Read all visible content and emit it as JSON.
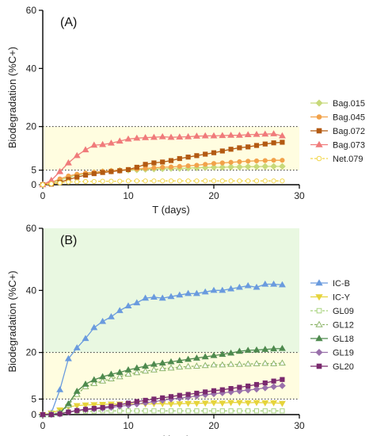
{
  "colors": {
    "band_low": "#fffde0",
    "band_high": "#e9f8e1",
    "axis": "#000000",
    "threshold_line": "#333333"
  },
  "chart_data": [
    {
      "type": "line",
      "panel_label": "(A)",
      "xlabel": "T (days)",
      "ylabel": "Biodegradation (%C+)",
      "xlim": [
        0,
        30
      ],
      "ylim": [
        0,
        60
      ],
      "xticks": [
        0,
        10,
        20,
        30
      ],
      "yticks": [
        0,
        5,
        20,
        40,
        60
      ],
      "threshold_lines": [
        5,
        20
      ],
      "bands": [
        {
          "from": 5,
          "to": 20,
          "color": "band_low"
        }
      ],
      "legend_position": "right",
      "series": [
        {
          "name": "Bag.015",
          "color": "#c7d97a",
          "marker": "diamond",
          "filled": true,
          "x": [
            0,
            1,
            2,
            3,
            4,
            5,
            6,
            7,
            8,
            9,
            10,
            11,
            12,
            13,
            14,
            15,
            16,
            17,
            18,
            19,
            20,
            21,
            22,
            23,
            24,
            25,
            26,
            27,
            28
          ],
          "y": [
            0,
            0.5,
            1.5,
            2.5,
            3.3,
            3.8,
            4.2,
            4.5,
            4.7,
            4.9,
            5.0,
            5.1,
            5.3,
            5.4,
            5.5,
            5.6,
            5.6,
            5.7,
            5.8,
            5.9,
            6.0,
            6.0,
            6.1,
            6.1,
            6.2,
            6.2,
            6.3,
            6.3,
            6.3
          ]
        },
        {
          "name": "Bag.045",
          "color": "#f2a24a",
          "marker": "circle",
          "filled": true,
          "x": [
            0,
            1,
            2,
            3,
            4,
            5,
            6,
            7,
            8,
            9,
            10,
            11,
            12,
            13,
            14,
            15,
            16,
            17,
            18,
            19,
            20,
            21,
            22,
            23,
            24,
            25,
            26,
            27,
            28
          ],
          "y": [
            0,
            0.8,
            2.0,
            3.0,
            3.6,
            4.0,
            4.3,
            4.6,
            4.8,
            5.0,
            5.2,
            5.4,
            5.6,
            5.8,
            6.0,
            6.1,
            6.3,
            6.5,
            6.7,
            7.0,
            7.3,
            7.5,
            7.7,
            7.9,
            8.1,
            8.2,
            8.3,
            8.4,
            8.4
          ]
        },
        {
          "name": "Bag.072",
          "color": "#b35a12",
          "marker": "square",
          "filled": true,
          "x": [
            0,
            1,
            2,
            3,
            4,
            5,
            6,
            7,
            8,
            9,
            10,
            11,
            12,
            13,
            14,
            15,
            16,
            17,
            18,
            19,
            20,
            21,
            22,
            23,
            24,
            25,
            26,
            27,
            28
          ],
          "y": [
            0,
            0.2,
            0.8,
            1.8,
            2.6,
            3.3,
            3.8,
            4.2,
            4.5,
            4.8,
            5.2,
            6.0,
            7.0,
            7.5,
            7.8,
            8.3,
            9.0,
            9.5,
            10.0,
            10.5,
            11.0,
            11.6,
            12.2,
            12.7,
            13.0,
            13.5,
            14.0,
            14.4,
            14.6
          ]
        },
        {
          "name": "Bag.073",
          "color": "#f07b7b",
          "marker": "triangle",
          "filled": true,
          "x": [
            0,
            1,
            2,
            3,
            4,
            5,
            6,
            7,
            8,
            9,
            10,
            11,
            12,
            13,
            14,
            15,
            16,
            17,
            18,
            19,
            20,
            21,
            22,
            23,
            24,
            25,
            26,
            27,
            28
          ],
          "y": [
            0,
            1.5,
            4.5,
            7.5,
            10.0,
            12.0,
            13.6,
            13.8,
            14.3,
            15.0,
            15.7,
            16.0,
            16.2,
            16.3,
            16.5,
            16.3,
            16.4,
            16.5,
            16.7,
            16.8,
            16.8,
            16.9,
            17.0,
            17.0,
            17.2,
            17.3,
            17.4,
            17.5,
            16.8
          ]
        },
        {
          "name": "Net.079",
          "color": "#f2d64b",
          "marker": "circle",
          "filled": false,
          "x": [
            0,
            1,
            2,
            3,
            4,
            5,
            6,
            7,
            8,
            9,
            10,
            11,
            12,
            13,
            14,
            15,
            16,
            17,
            18,
            19,
            20,
            21,
            22,
            23,
            24,
            25,
            26,
            27,
            28
          ],
          "y": [
            0,
            0.3,
            0.6,
            0.9,
            1.0,
            1.1,
            1.1,
            1.2,
            1.2,
            1.2,
            1.3,
            1.3,
            1.3,
            1.3,
            1.3,
            1.3,
            1.3,
            1.3,
            1.3,
            1.3,
            1.3,
            1.3,
            1.3,
            1.3,
            1.3,
            1.3,
            1.3,
            1.3,
            1.3
          ]
        }
      ]
    },
    {
      "type": "line",
      "panel_label": "(B)",
      "xlabel": "T (days)",
      "ylabel": "Biodegradation (%C+)",
      "xlim": [
        0,
        30
      ],
      "ylim": [
        0,
        60
      ],
      "xticks": [
        0,
        10,
        20,
        30
      ],
      "yticks": [
        0,
        5,
        20,
        40,
        60
      ],
      "threshold_lines": [
        5,
        20
      ],
      "bands": [
        {
          "from": 5,
          "to": 20,
          "color": "band_low"
        },
        {
          "from": 20,
          "to": 60,
          "color": "band_high"
        }
      ],
      "legend_position": "right",
      "series": [
        {
          "name": "IC-B",
          "color": "#6a9bde",
          "marker": "triangle",
          "filled": true,
          "x": [
            0,
            1,
            2,
            3,
            4,
            5,
            6,
            7,
            8,
            9,
            10,
            11,
            12,
            13,
            14,
            15,
            16,
            17,
            18,
            19,
            20,
            21,
            22,
            23,
            24,
            25,
            26,
            27,
            28
          ],
          "y": [
            0,
            0.5,
            8.0,
            18.0,
            21.5,
            24.5,
            28.0,
            30.0,
            31.5,
            33.5,
            35.0,
            36.0,
            37.5,
            37.8,
            37.5,
            38.0,
            38.5,
            39.0,
            39.0,
            39.5,
            40.0,
            40.0,
            40.5,
            41.0,
            41.5,
            41.0,
            42.0,
            42.0,
            41.8
          ]
        },
        {
          "name": "IC-Y",
          "color": "#e6d43c",
          "marker": "triangle-down",
          "filled": true,
          "x": [
            0,
            1,
            2,
            3,
            4,
            5,
            6,
            7,
            8,
            9,
            10,
            11,
            12,
            13,
            14,
            15,
            16,
            17,
            18,
            19,
            20,
            21,
            22,
            23,
            24,
            25,
            26,
            27,
            28
          ],
          "y": [
            0,
            0.5,
            1.5,
            2.5,
            2.9,
            3.1,
            3.2,
            3.3,
            3.4,
            3.4,
            3.4,
            3.5,
            3.4,
            3.5,
            3.5,
            3.4,
            3.5,
            3.6,
            3.6,
            3.7,
            3.8,
            3.7,
            3.9,
            3.9,
            3.8,
            3.9,
            3.8,
            3.8,
            3.6
          ]
        },
        {
          "name": "GL09",
          "color": "#a8d27e",
          "marker": "square",
          "filled": false,
          "x": [
            0,
            1,
            2,
            3,
            4,
            5,
            6,
            7,
            8,
            9,
            10,
            11,
            12,
            13,
            14,
            15,
            16,
            17,
            18,
            19,
            20,
            21,
            22,
            23,
            24,
            25,
            26,
            27,
            28
          ],
          "y": [
            0,
            0.3,
            0.6,
            0.9,
            1.0,
            1.1,
            1.1,
            1.2,
            1.2,
            1.2,
            1.2,
            1.2,
            1.2,
            1.2,
            1.2,
            1.2,
            1.2,
            1.2,
            1.2,
            1.2,
            1.2,
            1.2,
            1.2,
            1.2,
            1.2,
            1.2,
            1.2,
            1.2,
            1.2
          ]
        },
        {
          "name": "GL12",
          "color": "#8db56a",
          "marker": "triangle",
          "filled": false,
          "x": [
            0,
            1,
            2,
            3,
            4,
            5,
            6,
            7,
            8,
            9,
            10,
            11,
            12,
            13,
            14,
            15,
            16,
            17,
            18,
            19,
            20,
            21,
            22,
            23,
            24,
            25,
            26,
            27,
            28
          ],
          "y": [
            0,
            0,
            0.5,
            3.0,
            6.5,
            9.0,
            10.0,
            10.8,
            11.5,
            12.2,
            13.0,
            13.5,
            14.0,
            14.4,
            14.8,
            15.0,
            15.3,
            15.5,
            15.6,
            15.8,
            16.0,
            16.0,
            16.2,
            16.2,
            16.3,
            16.4,
            16.5,
            16.4,
            16.6
          ]
        },
        {
          "name": "GL18",
          "color": "#4e8a4e",
          "marker": "triangle",
          "filled": true,
          "x": [
            0,
            1,
            2,
            3,
            4,
            5,
            6,
            7,
            8,
            9,
            10,
            11,
            12,
            13,
            14,
            15,
            16,
            17,
            18,
            19,
            20,
            21,
            22,
            23,
            24,
            25,
            26,
            27,
            28
          ],
          "y": [
            0,
            0,
            0.5,
            3.5,
            7.5,
            9.8,
            11.2,
            12.2,
            13.0,
            13.6,
            14.4,
            15.0,
            15.6,
            16.2,
            16.6,
            17.0,
            17.4,
            17.8,
            18.2,
            18.6,
            19.0,
            19.4,
            19.8,
            20.4,
            20.7,
            20.8,
            21.0,
            21.2,
            21.3
          ]
        },
        {
          "name": "GL19",
          "color": "#9970ab",
          "marker": "diamond",
          "filled": true,
          "x": [
            0,
            1,
            2,
            3,
            4,
            5,
            6,
            7,
            8,
            9,
            10,
            11,
            12,
            13,
            14,
            15,
            16,
            17,
            18,
            19,
            20,
            21,
            22,
            23,
            24,
            25,
            26,
            27,
            28
          ],
          "y": [
            0,
            0,
            0.2,
            0.8,
            1.3,
            1.6,
            1.8,
            2.0,
            2.3,
            2.7,
            3.0,
            3.4,
            3.8,
            4.2,
            4.6,
            5.0,
            5.3,
            5.6,
            6.0,
            6.4,
            6.7,
            7.0,
            7.3,
            7.6,
            7.9,
            8.2,
            8.6,
            9.0,
            9.3
          ]
        },
        {
          "name": "GL20",
          "color": "#7a2a6e",
          "marker": "square",
          "filled": true,
          "x": [
            0,
            1,
            2,
            3,
            4,
            5,
            6,
            7,
            8,
            9,
            10,
            11,
            12,
            13,
            14,
            15,
            16,
            17,
            18,
            19,
            20,
            21,
            22,
            23,
            24,
            25,
            26,
            27,
            28
          ],
          "y": [
            0,
            0,
            0.2,
            0.8,
            1.3,
            1.7,
            2.0,
            2.3,
            2.7,
            3.2,
            3.7,
            4.2,
            4.6,
            5.0,
            5.4,
            5.8,
            6.2,
            6.5,
            6.9,
            7.3,
            7.7,
            8.0,
            8.4,
            8.8,
            9.2,
            9.7,
            10.2,
            10.8,
            11.3
          ]
        }
      ]
    }
  ]
}
